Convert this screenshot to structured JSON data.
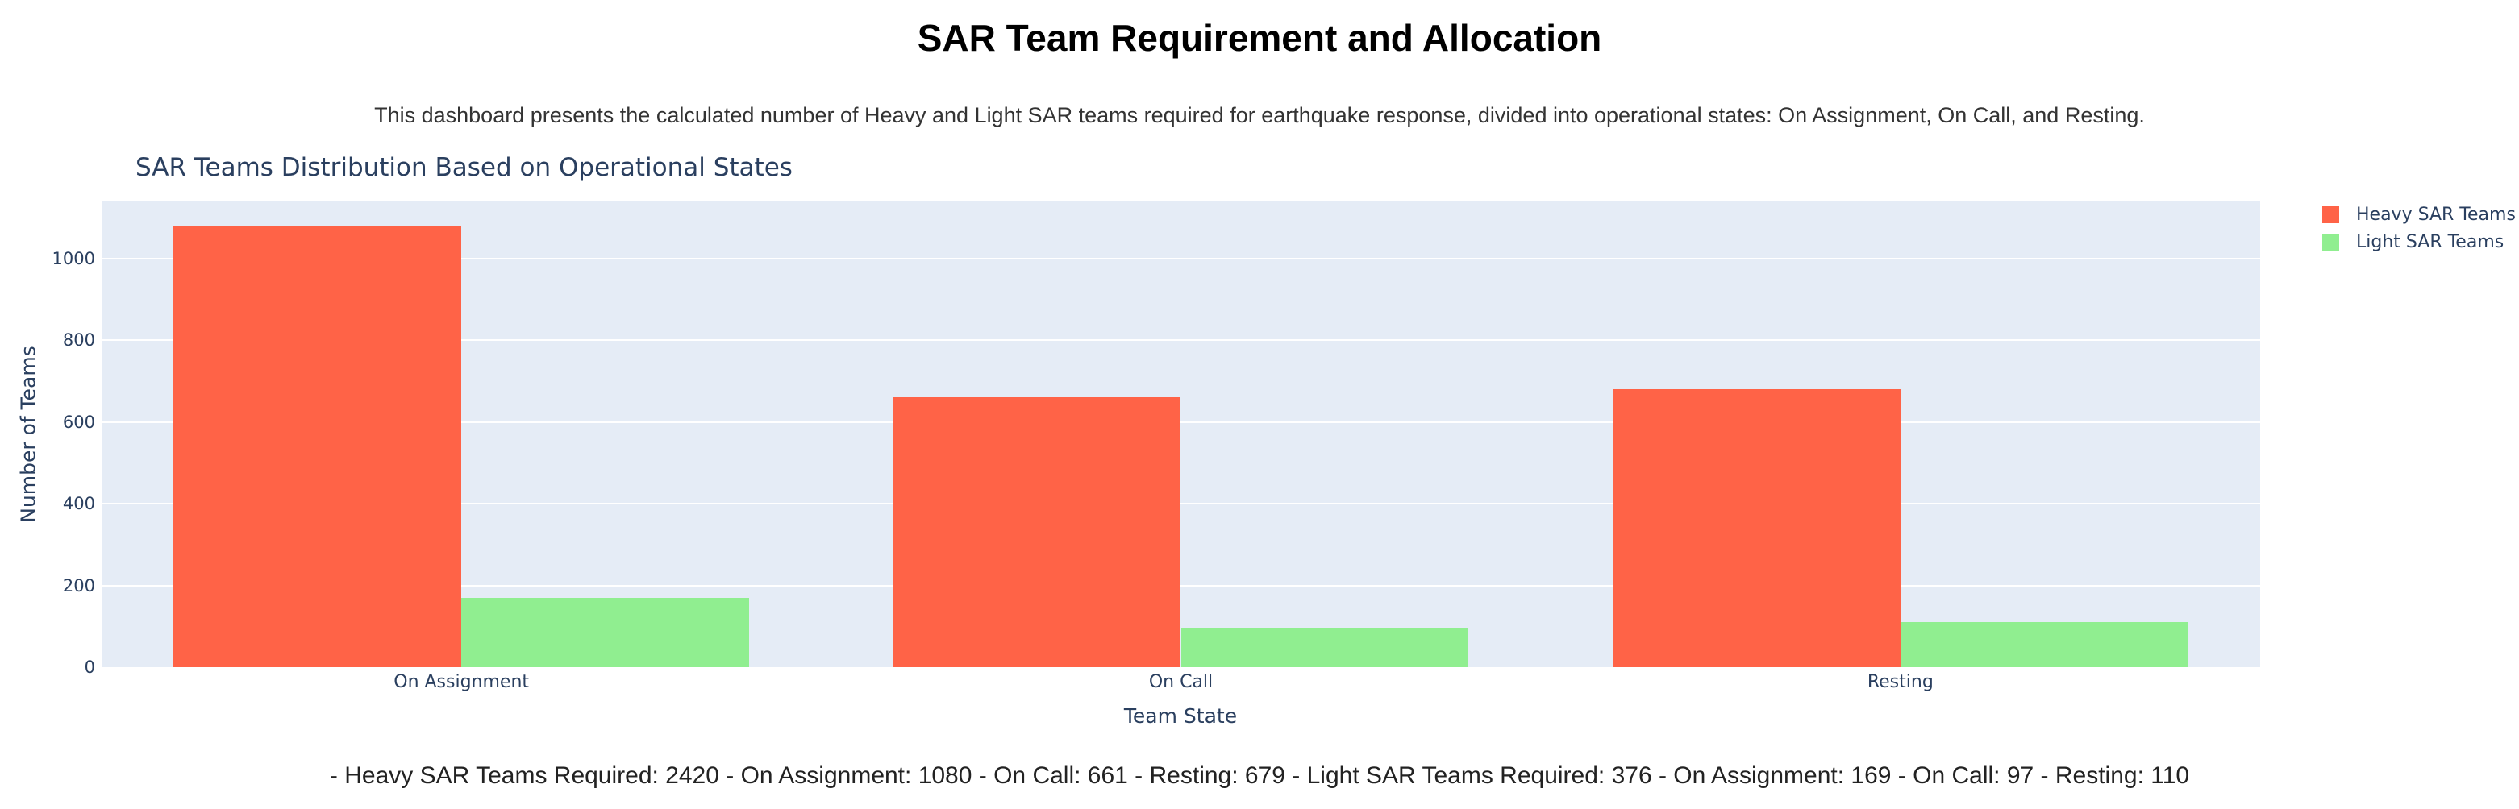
{
  "header": {
    "title": "SAR Team Requirement and Allocation",
    "subtitle": "This dashboard presents the calculated number of Heavy and Light SAR teams required for earthquake response, divided into operational states: On Assignment, On Call, and Resting."
  },
  "chart_data": {
    "type": "bar",
    "title": "SAR Teams Distribution Based on Operational States",
    "categories": [
      "On Assignment",
      "On Call",
      "Resting"
    ],
    "series": [
      {
        "name": "Heavy SAR Teams",
        "color": "#FF6347",
        "values": [
          1080,
          661,
          679
        ]
      },
      {
        "name": "Light SAR Teams",
        "color": "#90EE90",
        "values": [
          169,
          97,
          110
        ]
      }
    ],
    "xlabel": "Team State",
    "ylabel": "Number of Teams",
    "ylim": [
      0,
      1139
    ],
    "yticks": [
      0,
      200,
      400,
      600,
      800,
      1000
    ],
    "grid": true,
    "legend_position": "top-right",
    "barmode": "group",
    "colors": {
      "plot_background": "#E5ECF6",
      "gridline": "#FFFFFF",
      "axis_text": "#2a3f5f"
    }
  },
  "summary": {
    "text": "- Heavy SAR Teams Required: 2420 - On Assignment: 1080 - On Call: 661 - Resting: 679 - Light SAR Teams Required: 376 - On Assignment: 169 - On Call: 97 - Resting: 110",
    "heavy_sar_teams_required": 2420,
    "heavy_on_assignment": 1080,
    "heavy_on_call": 661,
    "heavy_resting": 679,
    "light_sar_teams_required": 376,
    "light_on_assignment": 169,
    "light_on_call": 97,
    "light_resting": 110
  }
}
